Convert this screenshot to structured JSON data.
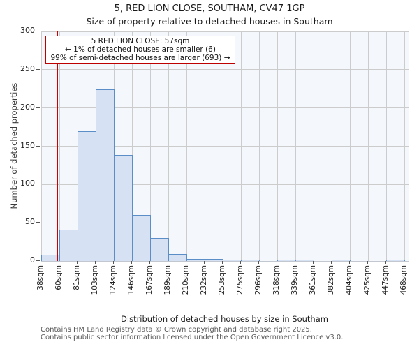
{
  "title": "5, RED LION CLOSE, SOUTHAM, CV47 1GP",
  "subtitle": "Size of property relative to detached houses in Southam",
  "annotation": {
    "line1": "5 RED LION CLOSE: 57sqm",
    "line2": "← 1% of detached houses are smaller (6)",
    "line3": "99% of semi-detached houses are larger (693) →"
  },
  "footer": {
    "line1": "Contains HM Land Registry data © Crown copyright and database right 2025.",
    "line2": "Contains public sector information licensed under the Open Government Licence v3.0."
  },
  "chart_data": {
    "type": "bar",
    "title": "5, RED LION CLOSE, SOUTHAM, CV47 1GP",
    "subtitle": "Size of property relative to detached houses in Southam",
    "xlabel": "Distribution of detached houses by size in Southam",
    "ylabel": "Number of detached properties",
    "bin_edges_sqm": [
      38,
      60,
      81,
      103,
      124,
      146,
      167,
      189,
      210,
      232,
      253,
      275,
      296,
      318,
      339,
      361,
      382,
      404,
      425,
      447,
      468
    ],
    "x_tick_labels": [
      "38sqm",
      "60sqm",
      "81sqm",
      "103sqm",
      "124sqm",
      "146sqm",
      "167sqm",
      "189sqm",
      "210sqm",
      "232sqm",
      "253sqm",
      "275sqm",
      "296sqm",
      "318sqm",
      "339sqm",
      "361sqm",
      "382sqm",
      "404sqm",
      "425sqm",
      "447sqm",
      "468sqm"
    ],
    "values": [
      8,
      41,
      170,
      224,
      139,
      60,
      30,
      9,
      3,
      3,
      2,
      2,
      0,
      2,
      1,
      0,
      1,
      0,
      0,
      1
    ],
    "y_ticks": [
      0,
      50,
      100,
      150,
      200,
      250,
      300
    ],
    "ylim": [
      0,
      300
    ],
    "grid": true,
    "legend": "none",
    "marker_value_sqm": 57,
    "colors": {
      "bar_fill": "#d6e1f4",
      "bar_border": "#5b8ec6",
      "marker_line": "#cc0000",
      "annotation_border": "#bf0000",
      "grid_line": "#cccccc",
      "plot_bg": "#f4f7fc"
    }
  }
}
